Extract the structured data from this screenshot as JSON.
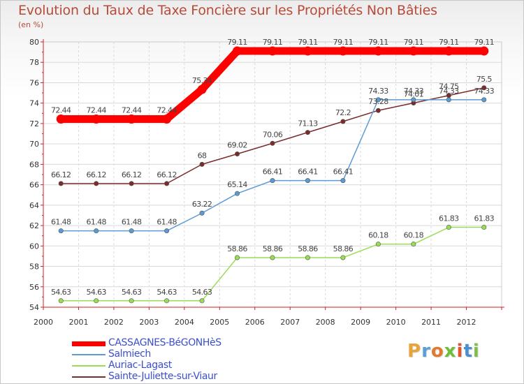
{
  "title": "Evolution du Taux de Taxe Foncière sur les Propriétés Non Bâties",
  "unit_label": "(en %)",
  "logo_text": "Proxiti",
  "colors": {
    "title": "#b94a38",
    "axis": "#cc2222",
    "legend_text": "#3b4fd0"
  },
  "chart_data": {
    "type": "line",
    "title": "Evolution du Taux de Taxe Foncière sur les Propriétés Non Bâties",
    "ylabel": "(en %)",
    "xlabel": "",
    "categories": [
      "2000",
      "2001",
      "2002",
      "2003",
      "2004",
      "2005",
      "2006",
      "2007",
      "2008",
      "2009",
      "2010",
      "2011",
      "2012"
    ],
    "ylim": [
      54,
      80
    ],
    "yticks": [
      54,
      56,
      58,
      60,
      62,
      64,
      66,
      68,
      70,
      72,
      74,
      76,
      78,
      80
    ],
    "grid": true,
    "legend_position": "bottom-left",
    "series": [
      {
        "name": "CASSAGNES-BéGONHèS",
        "color": "#ff0000",
        "width": "thick",
        "values": [
          72.44,
          72.44,
          72.44,
          72.44,
          75.34,
          79.11,
          79.11,
          79.11,
          79.11,
          79.11,
          79.11,
          79.11,
          79.11
        ],
        "labels": [
          "72.44",
          "72.44",
          "72.44",
          "72.44",
          "75.34",
          "79.11",
          "79.11",
          "79.11",
          "79.11",
          "79.11",
          "79.11",
          "79.11",
          "79.11"
        ]
      },
      {
        "name": "Salmiech",
        "color": "#5b9bd5",
        "width": "thin",
        "values": [
          61.48,
          61.48,
          61.48,
          61.48,
          63.22,
          65.14,
          66.41,
          66.41,
          66.41,
          74.33,
          74.33,
          74.33,
          74.33
        ],
        "labels": [
          "61.48",
          "61.48",
          "61.48",
          "61.48",
          "63.22",
          "65.14",
          "66.41",
          "66.41",
          "66.41",
          "74.33",
          "74.33",
          "74.33",
          "74.33"
        ]
      },
      {
        "name": "Auriac-Lagast",
        "color": "#99dd55",
        "width": "thin",
        "values": [
          54.63,
          54.63,
          54.63,
          54.63,
          54.63,
          58.86,
          58.86,
          58.86,
          58.86,
          60.18,
          60.18,
          61.83,
          61.83
        ],
        "labels": [
          "54.63",
          "54.63",
          "54.63",
          "54.63",
          "54.63",
          "58.86",
          "58.86",
          "58.86",
          "58.86",
          "60.18",
          "60.18",
          "61.83",
          "61.83"
        ]
      },
      {
        "name": "Sainte-Juliette-sur-Viaur",
        "color": "#7a2b2b",
        "width": "thin",
        "values": [
          66.12,
          66.12,
          66.12,
          66.12,
          68,
          69.02,
          70.06,
          71.13,
          72.2,
          73.28,
          74.01,
          74.75,
          75.5
        ],
        "labels": [
          "66.12",
          "66.12",
          "66.12",
          "66.12",
          "68",
          "69.02",
          "70.06",
          "71.13",
          "72.2",
          "73.28",
          "74.01",
          "74.75",
          "75.5"
        ]
      }
    ]
  }
}
